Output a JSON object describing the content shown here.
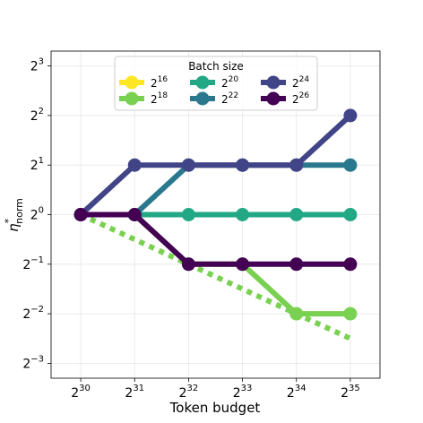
{
  "chart_data": {
    "type": "line",
    "xlabel": "Token budget",
    "ylabel_main": "η",
    "ylabel_sup": "*",
    "ylabel_sub": "norm",
    "x_exponents": [
      30,
      31,
      32,
      33,
      34,
      35
    ],
    "x_tick_base": "2",
    "x_tick_labels": [
      "30",
      "31",
      "32",
      "33",
      "34",
      "35"
    ],
    "y_tick_base": "2",
    "y_tick_exponents": [
      -3,
      -2,
      -1,
      0,
      1,
      2,
      3
    ],
    "y_tick_labels": [
      "−3",
      "−2",
      "−1",
      "0",
      "1",
      "2",
      "3"
    ],
    "xlim_log2": [
      29.45,
      35.55
    ],
    "ylim_log2": [
      -3.3,
      3.3
    ],
    "log_scale": "base 2 on both axes",
    "grid": true,
    "legend": {
      "title": "Batch size",
      "placement": "top-center",
      "entries": [
        {
          "base": "2",
          "exp": "16",
          "color": "#fde725"
        },
        {
          "base": "2",
          "exp": "18",
          "color": "#7ad151"
        },
        {
          "base": "2",
          "exp": "20",
          "color": "#22a884"
        },
        {
          "base": "2",
          "exp": "22",
          "color": "#2a788e"
        },
        {
          "base": "2",
          "exp": "24",
          "color": "#414487"
        },
        {
          "base": "2",
          "exp": "26",
          "color": "#440154"
        }
      ]
    },
    "series": [
      {
        "batch_exp": 16,
        "color": "#fde725",
        "x_log2": [
          30,
          31
        ],
        "y_log2": [
          0,
          0
        ]
      },
      {
        "batch_exp": 18,
        "color": "#7ad151",
        "x_log2": [
          30,
          31,
          32,
          33,
          34,
          35
        ],
        "y_log2": [
          0,
          0,
          -1,
          -1,
          -2,
          -2
        ]
      },
      {
        "batch_exp": 20,
        "color": "#22a884",
        "x_log2": [
          30,
          31,
          32,
          33,
          34,
          35
        ],
        "y_log2": [
          0,
          0,
          0,
          0,
          0,
          0
        ]
      },
      {
        "batch_exp": 22,
        "color": "#2a788e",
        "x_log2": [
          30,
          31,
          32,
          33,
          34,
          35
        ],
        "y_log2": [
          0,
          0,
          1,
          1,
          1,
          1
        ]
      },
      {
        "batch_exp": 24,
        "color": "#414487",
        "x_log2": [
          30,
          31,
          32,
          33,
          34,
          35
        ],
        "y_log2": [
          0,
          1,
          1,
          1,
          1,
          2
        ]
      },
      {
        "batch_exp": 26,
        "color": "#440154",
        "x_log2": [
          30,
          31,
          32,
          33,
          34,
          35
        ],
        "y_log2": [
          0,
          0,
          -1,
          -1,
          -1,
          -1
        ]
      }
    ],
    "fit_line": {
      "style": "dotted",
      "color": "#7ad151",
      "x_log2": [
        30,
        35
      ],
      "y_log2": [
        0,
        -2.5
      ]
    }
  }
}
